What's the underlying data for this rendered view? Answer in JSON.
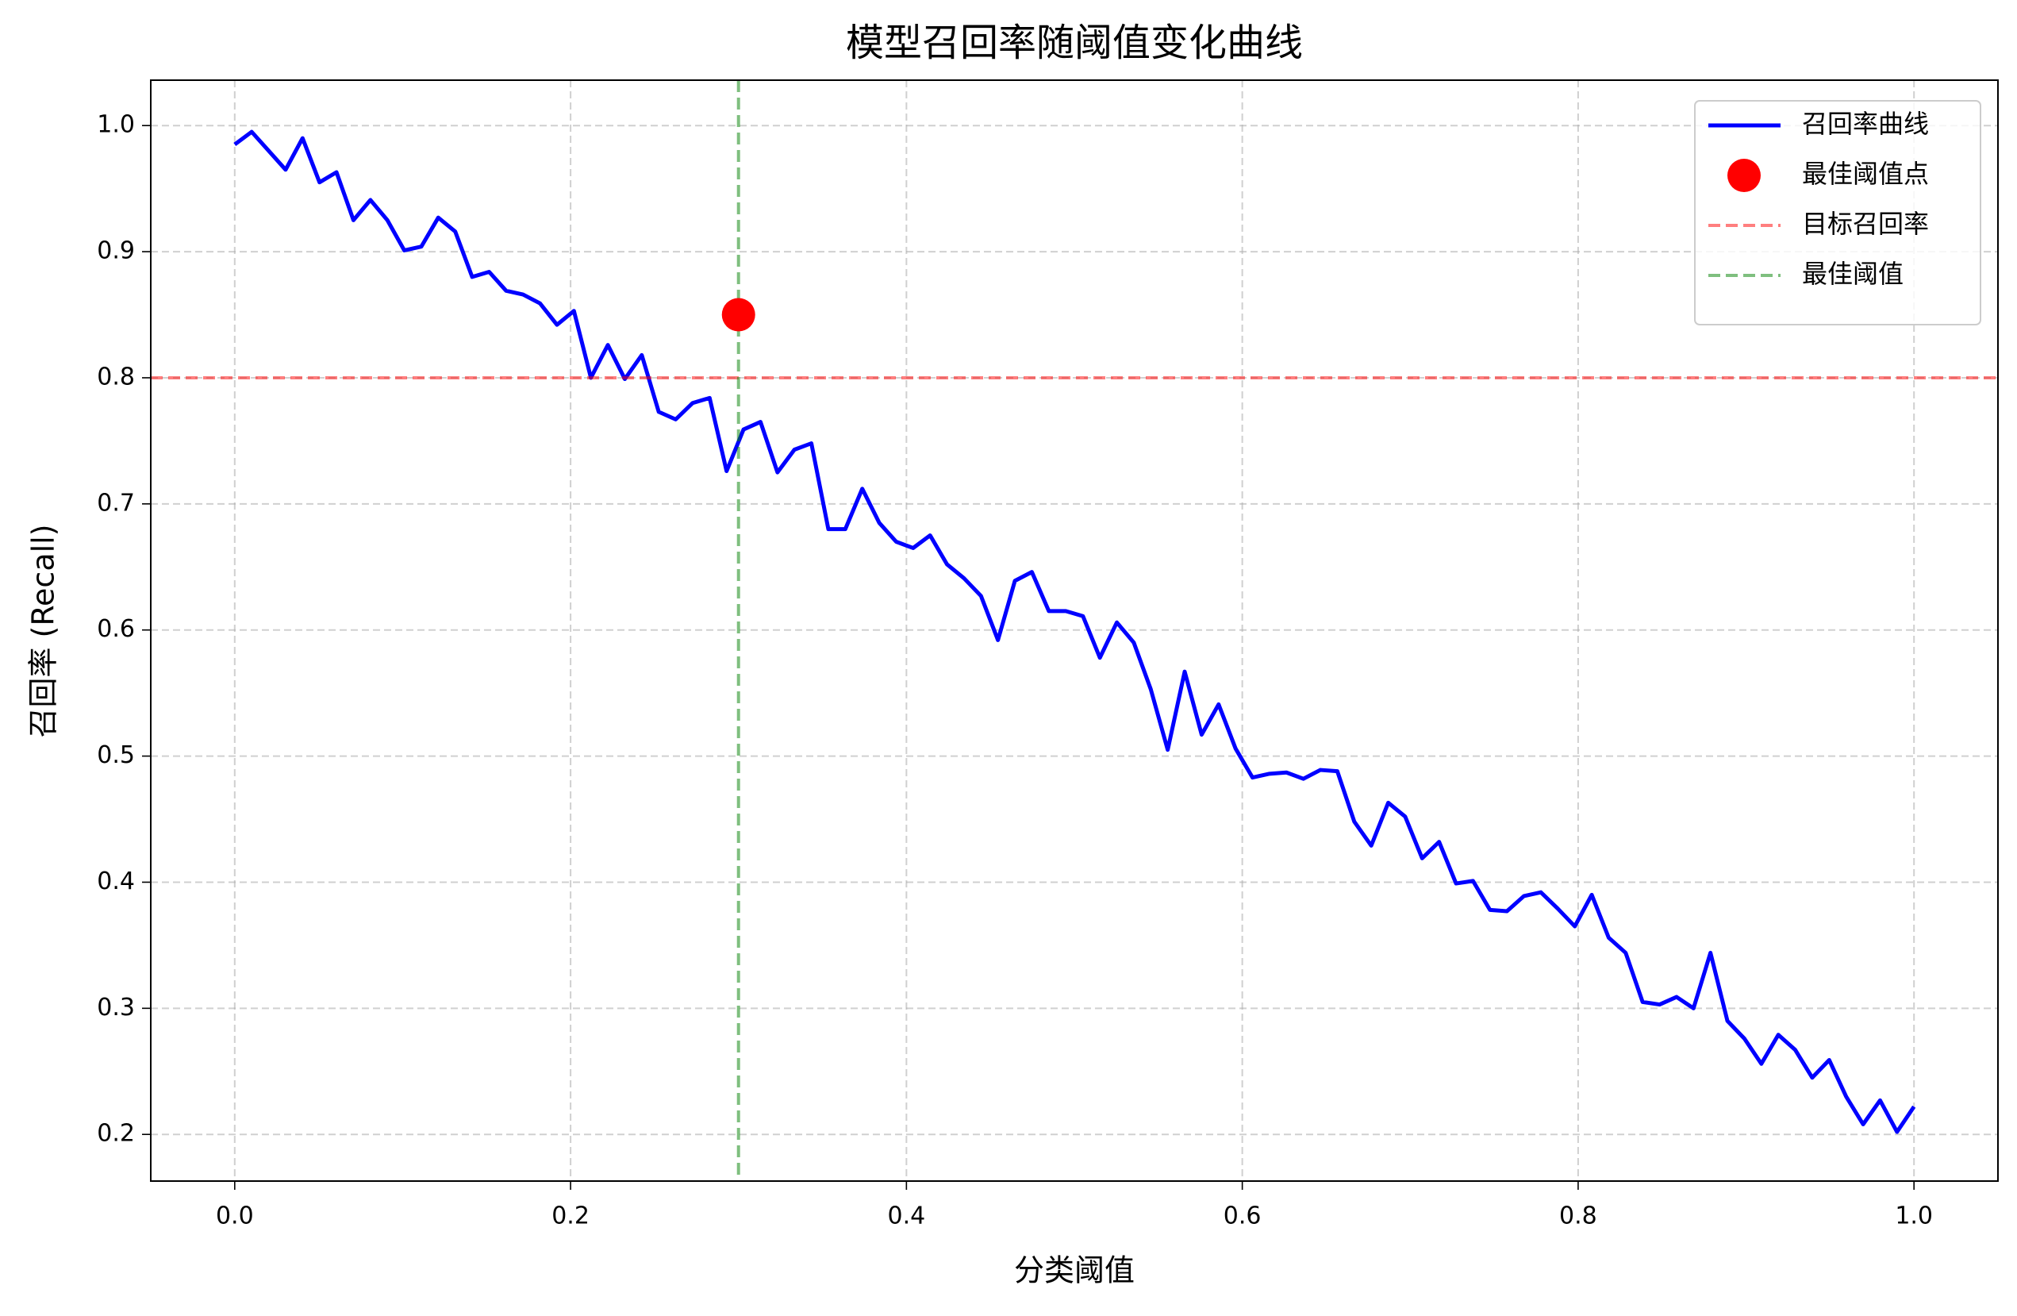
{
  "chart_data": {
    "type": "line",
    "title": "模型召回率随阈值变化曲线",
    "x_label": "分类阈值",
    "y_label": "召回率 (Recall)",
    "x": [
      0,
      0.0101,
      0.0202,
      0.0303,
      0.0404,
      0.0505,
      0.0606,
      0.0707,
      0.0808,
      0.0909,
      0.101,
      0.1111,
      0.1212,
      0.1313,
      0.1414,
      0.1515,
      0.1616,
      0.1717,
      0.1818,
      0.1919,
      0.202,
      0.2121,
      0.2222,
      0.2323,
      0.2424,
      0.2525,
      0.2626,
      0.2727,
      0.2828,
      0.2929,
      0.303,
      0.3131,
      0.3232,
      0.3333,
      0.3434,
      0.3535,
      0.3636,
      0.3737,
      0.3838,
      0.3939,
      0.404,
      0.4141,
      0.4242,
      0.4343,
      0.4444,
      0.4545,
      0.4646,
      0.4747,
      0.4848,
      0.4949,
      0.5051,
      0.5152,
      0.5253,
      0.5354,
      0.5455,
      0.5556,
      0.5657,
      0.5758,
      0.5859,
      0.596,
      0.6061,
      0.6162,
      0.6263,
      0.6364,
      0.6465,
      0.6566,
      0.6667,
      0.6768,
      0.6869,
      0.697,
      0.7071,
      0.7172,
      0.7273,
      0.7374,
      0.7475,
      0.7576,
      0.7677,
      0.7778,
      0.7879,
      0.798,
      0.8081,
      0.8182,
      0.8283,
      0.8384,
      0.8485,
      0.8586,
      0.8687,
      0.8788,
      0.8889,
      0.899,
      0.9091,
      0.9192,
      0.9293,
      0.9394,
      0.9495,
      0.9596,
      0.9697,
      0.9798,
      0.9899,
      1.0
    ],
    "series": [
      {
        "name": "召回率曲线",
        "color": "#0000ff",
        "values": [
          0.985,
          0.995,
          0.98,
          0.965,
          0.99,
          0.955,
          0.963,
          0.925,
          0.941,
          0.925,
          0.901,
          0.904,
          0.927,
          0.916,
          0.88,
          0.884,
          0.869,
          0.866,
          0.859,
          0.842,
          0.853,
          0.8,
          0.826,
          0.799,
          0.818,
          0.773,
          0.767,
          0.78,
          0.784,
          0.726,
          0.759,
          0.765,
          0.725,
          0.743,
          0.748,
          0.68,
          0.68,
          0.712,
          0.685,
          0.67,
          0.665,
          0.675,
          0.652,
          0.641,
          0.627,
          0.592,
          0.639,
          0.646,
          0.615,
          0.615,
          0.611,
          0.578,
          0.606,
          0.59,
          0.553,
          0.505,
          0.567,
          0.517,
          0.541,
          0.506,
          0.483,
          0.486,
          0.487,
          0.482,
          0.489,
          0.488,
          0.448,
          0.429,
          0.463,
          0.452,
          0.419,
          0.432,
          0.399,
          0.401,
          0.378,
          0.377,
          0.389,
          0.392,
          0.379,
          0.365,
          0.39,
          0.356,
          0.344,
          0.305,
          0.303,
          0.309,
          0.3,
          0.344,
          0.29,
          0.276,
          0.256,
          0.279,
          0.267,
          0.245,
          0.259,
          0.23,
          0.208,
          0.227,
          0.202,
          0.222
        ]
      }
    ],
    "points": [
      {
        "name": "最佳阈值点",
        "color": "#ff0000",
        "x": 0.3,
        "y": 0.85
      }
    ],
    "hlines": [
      {
        "name": "目标召回率",
        "color": "#ff0000",
        "y": 0.8
      }
    ],
    "vlines": [
      {
        "name": "最佳阈值",
        "color": "#008000",
        "x": 0.3
      }
    ],
    "xlim": [
      -0.05,
      1.05
    ],
    "ylim": [
      0.163,
      1.036
    ],
    "xticks": [
      {
        "value": 0,
        "label": "0.0"
      },
      0.2,
      0.4,
      0.6,
      0.8,
      {
        "value": 1,
        "label": "1.0"
      }
    ],
    "yticks": [
      0.2,
      0.3,
      0.4,
      0.5,
      0.6,
      0.7,
      0.8,
      0.9,
      {
        "value": 1,
        "label": "1.0"
      }
    ],
    "grid": true,
    "legend": "upper right"
  }
}
